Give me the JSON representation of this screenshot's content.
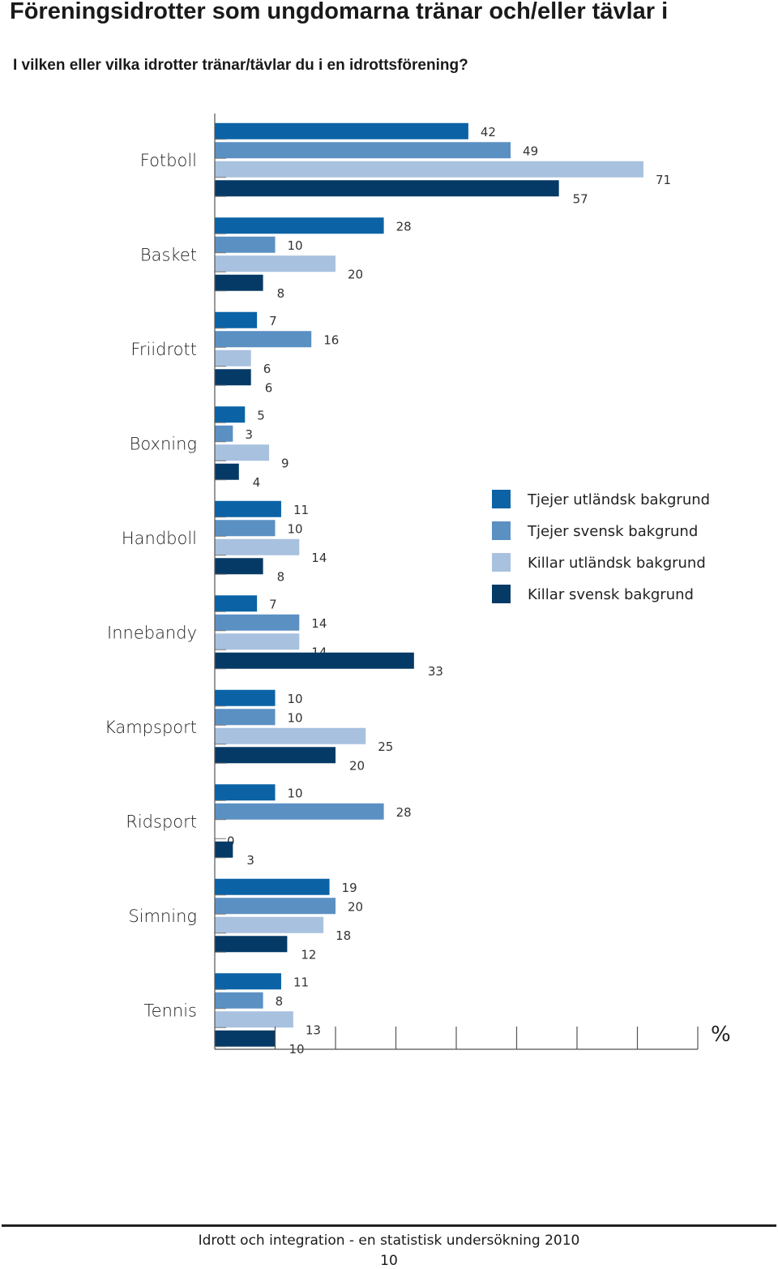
{
  "header": {
    "title": "Föreningsidrotter som ungdomarna tränar och/eller tävlar i",
    "question": "I vilken eller vilka idrotter tränar/tävlar du i en idrottsförening?"
  },
  "chart_data": {
    "type": "bar",
    "orientation": "horizontal",
    "title": "Föreningsidrotter som ungdomarna tränar och/eller tävlar i",
    "subtitle": "I vilken eller vilka idrotter tränar/tävlar du i en idrottsförening?",
    "xlabel": "%",
    "ylabel": "",
    "xlim": [
      0,
      80
    ],
    "grid": false,
    "legend_position": "right-middle",
    "categories": [
      "Fotboll",
      "Basket",
      "Friidrott",
      "Boxning",
      "Handboll",
      "Innebandy",
      "Kampsport",
      "Ridsport",
      "Simning",
      "Tennis"
    ],
    "series": [
      {
        "name": "Tjejer utländsk bakgrund",
        "color": "#0b63a6",
        "values": [
          42,
          28,
          7,
          5,
          11,
          7,
          10,
          10,
          19,
          11
        ]
      },
      {
        "name": "Tjejer svensk bakgrund",
        "color": "#5b90c3",
        "values": [
          49,
          10,
          16,
          3,
          10,
          14,
          10,
          28,
          20,
          8
        ]
      },
      {
        "name": "Killar utländsk bakgrund",
        "color": "#a8c1df",
        "values": [
          71,
          20,
          6,
          9,
          14,
          14,
          25,
          0,
          18,
          13
        ]
      },
      {
        "name": "Killar svensk bakgrund",
        "color": "#063a66",
        "values": [
          57,
          8,
          6,
          4,
          8,
          33,
          20,
          3,
          12,
          10
        ]
      }
    ]
  },
  "footer": {
    "text": "Idrott och integration - en statistisk undersökning 2010",
    "page_number": "10"
  }
}
